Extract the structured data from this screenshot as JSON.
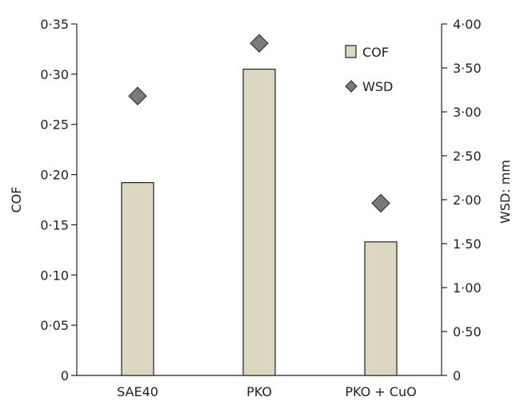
{
  "chart_data": {
    "type": "bar",
    "categories": [
      "SAE40",
      "PKO",
      "PKO + CuO"
    ],
    "series": [
      {
        "name": "COF",
        "axis": "left",
        "mark": "bar",
        "values": [
          0.192,
          0.305,
          0.133
        ]
      },
      {
        "name": "WSD",
        "axis": "right",
        "mark": "diamond",
        "values": [
          3.18,
          3.78,
          1.96
        ]
      }
    ],
    "xlabel": "",
    "ylabel_left": "COF",
    "ylabel_right": "WSD: mm",
    "ylim_left": [
      0,
      0.35
    ],
    "ylim_right": [
      0,
      4.0
    ],
    "yticks_left": [
      "0",
      "0·05",
      "0·10",
      "0·15",
      "0·20",
      "0·25",
      "0·30",
      "0·35"
    ],
    "yticks_right": [
      "0",
      "0·50",
      "1·00",
      "1·50",
      "2·00",
      "2·50",
      "3·00",
      "3·50",
      "4·00"
    ],
    "grid": false,
    "legend": {
      "position": "top-right",
      "entries": [
        "COF",
        "WSD"
      ]
    },
    "colors": {
      "bar_fill": "#ddd7c2",
      "bar_stroke": "#222222",
      "diamond_fill": "#7a7a7a",
      "axis": "#222222"
    }
  }
}
